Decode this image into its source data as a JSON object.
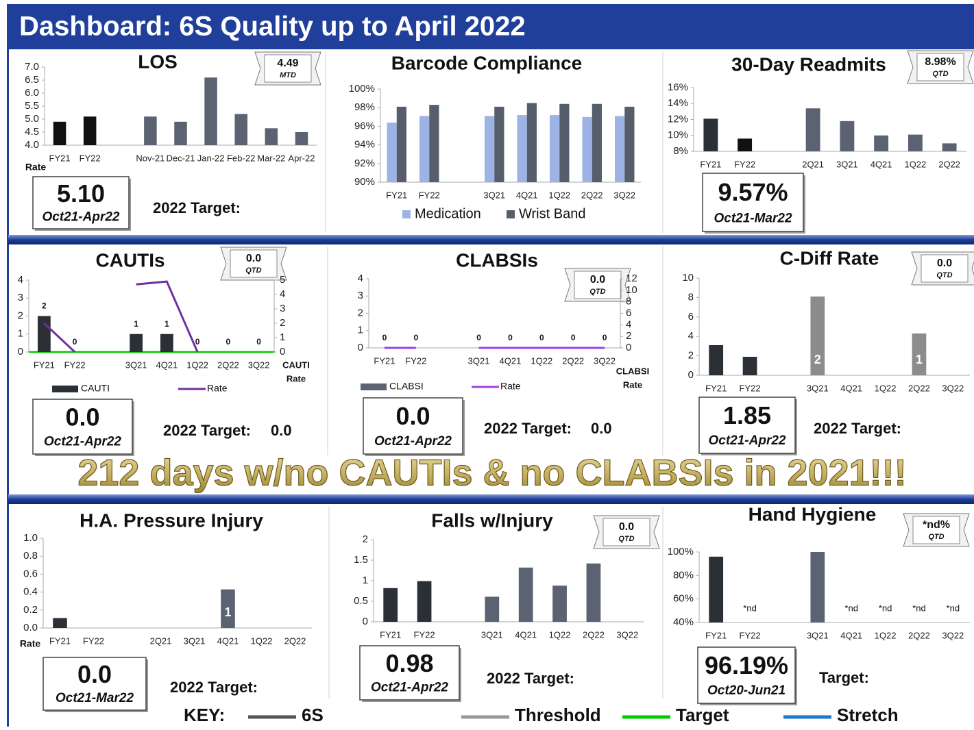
{
  "header": {
    "title": "Dashboard: 6S Quality up to April 2022"
  },
  "banner": "212 days w/no CAUTIs & no CLABSIs in 2021!!!",
  "panels": [
    {
      "title": "LOS",
      "badge": {
        "value": "4.49",
        "label": "MTD"
      },
      "chart": {
        "type": "bar",
        "categories": [
          "FY21",
          "FY22",
          null,
          "Nov-21",
          "Dec-21",
          "Jan-22",
          "Feb-22",
          "Mar-22",
          "Apr-22"
        ],
        "series": [
          {
            "name": "LOS",
            "values": [
              4.9,
              5.1,
              null,
              5.1,
              4.9,
              6.6,
              5.2,
              4.65,
              4.5
            ],
            "colors": [
              "#111111",
              "#111111",
              null,
              "#5b6373",
              "#5b6373",
              "#5b6373",
              "#5b6373",
              "#5b6373",
              "#5b6373"
            ]
          }
        ],
        "ylim": [
          4,
          7
        ],
        "yticks": [
          {
            "value": 4,
            "label": "4.0"
          },
          {
            "value": 4.5,
            "label": "4.5"
          },
          {
            "value": 5,
            "label": "5.0"
          },
          {
            "value": 5.5,
            "label": "5.5"
          },
          {
            "value": 6,
            "label": "6.0"
          },
          {
            "value": 6.5,
            "label": "6.5"
          },
          {
            "value": 7,
            "label": "7.0"
          }
        ],
        "axis_note": "Rate"
      },
      "summary": {
        "value": "5.10",
        "period": "Oct21-Apr22"
      },
      "target": {
        "label": "2022 Target:"
      }
    },
    {
      "title": "Barcode Compliance",
      "chart": {
        "type": "bar",
        "categories": [
          "FY21",
          "FY22",
          null,
          "3Q21",
          "4Q21",
          "1Q22",
          "2Q22",
          "3Q22"
        ],
        "series": [
          {
            "name": "Medication",
            "color": "#9db3e6",
            "values": [
              96.4,
              97.1,
              null,
              97.1,
              97.2,
              97.2,
              97.0,
              97.1
            ]
          },
          {
            "name": "Wrist Band",
            "color": "#565e6b",
            "values": [
              98.1,
              98.3,
              null,
              98.1,
              98.5,
              98.4,
              98.4,
              98.1
            ]
          }
        ],
        "ylim": [
          90,
          100
        ],
        "yticks": [
          {
            "value": 90,
            "label": "90%"
          },
          {
            "value": 92,
            "label": "92%"
          },
          {
            "value": 94,
            "label": "94%"
          },
          {
            "value": 96,
            "label": "96%"
          },
          {
            "value": 98,
            "label": "98%"
          },
          {
            "value": 100,
            "label": "100%"
          }
        ],
        "legend": true
      }
    },
    {
      "title": "30-Day Readmits",
      "badge": {
        "value": "8.98%",
        "label": "QTD"
      },
      "chart": {
        "type": "bar",
        "categories": [
          "FY21",
          "FY22",
          null,
          "2Q21",
          "3Q21",
          "4Q21",
          "1Q22",
          "2Q22"
        ],
        "series": [
          {
            "name": "Readmits",
            "values": [
              12.1,
              9.6,
              null,
              13.4,
              11.8,
              10.0,
              10.1,
              9.0
            ],
            "colors": [
              "#2b2f36",
              "#111111",
              null,
              "#5b6373",
              "#5b6373",
              "#5b6373",
              "#5b6373",
              "#5b6373"
            ]
          }
        ],
        "ylim": [
          8,
          16
        ],
        "yticks": [
          {
            "value": 8,
            "label": "8%"
          },
          {
            "value": 10,
            "label": "10%"
          },
          {
            "value": 12,
            "label": "12%"
          },
          {
            "value": 14,
            "label": "14%"
          },
          {
            "value": 16,
            "label": "16%"
          }
        ]
      },
      "summary": {
        "value": "9.57%",
        "period": "Oct21-Mar22"
      }
    },
    {
      "title": "CAUTIs",
      "badge": {
        "value": "0.0",
        "label": "QTD"
      },
      "chart": {
        "type": "bar",
        "categories": [
          "FY21",
          "FY22",
          null,
          "3Q21",
          "4Q21",
          "1Q22",
          "2Q22",
          "3Q22"
        ],
        "series": [
          {
            "name": "CAUTI",
            "color": "#2b2f36",
            "values": [
              2,
              0,
              null,
              1,
              1,
              0,
              0,
              0
            ],
            "labels": true
          },
          {
            "name": "Rate",
            "type": "line",
            "axis": "y2",
            "color": "#7030a0",
            "values": [
              2.0,
              0,
              null,
              4.7,
              4.9,
              0,
              null,
              null
            ]
          }
        ],
        "ylim": [
          0,
          4
        ],
        "yticks": [
          0,
          1,
          2,
          3,
          4
        ],
        "y2lim": [
          0,
          5
        ],
        "y2ticks": [
          0,
          1,
          2,
          3,
          4,
          5
        ],
        "y2_title": [
          "CAUTI",
          "Rate"
        ],
        "target_line": 0,
        "legend": true
      },
      "summary": {
        "value": "0.0",
        "period": "Oct21-Apr22"
      },
      "target": {
        "label": "2022 Target:",
        "value": "0.0"
      }
    },
    {
      "title": "CLABSIs",
      "badge": {
        "value": "0.0",
        "label": "QTD"
      },
      "chart": {
        "type": "bar",
        "categories": [
          "FY21",
          "FY22",
          null,
          "3Q21",
          "4Q21",
          "1Q22",
          "2Q22",
          "3Q22"
        ],
        "series": [
          {
            "name": "CLABSI",
            "color": "#5b6373",
            "values": [
              0,
              0,
              null,
              0,
              0,
              0,
              0,
              0
            ],
            "labels": true
          },
          {
            "name": "Rate",
            "type": "line",
            "axis": "y2",
            "color": "#a040e0",
            "values": [
              0,
              0,
              null,
              0,
              0,
              0,
              0,
              0
            ]
          }
        ],
        "ylim": [
          0,
          4
        ],
        "yticks": [
          0,
          1,
          2,
          3,
          4
        ],
        "y2lim": [
          0,
          12
        ],
        "y2ticks": [
          0,
          2,
          4,
          6,
          8,
          10,
          12
        ],
        "y2_title": [
          "CLABSI",
          "Rate"
        ],
        "legend": true
      },
      "summary": {
        "value": "0.0",
        "period": "Oct21-Apr22"
      },
      "target": {
        "label": "2022 Target:",
        "value": "0.0"
      }
    },
    {
      "title": "C-Diff Rate",
      "badge": {
        "value": "0.0",
        "label": "QTD"
      },
      "chart": {
        "type": "bar",
        "categories": [
          "FY21",
          "FY22",
          null,
          "3Q21",
          "4Q21",
          "1Q22",
          "2Q22",
          "3Q22"
        ],
        "series": [
          {
            "name": "C-Diff",
            "values": [
              3.1,
              1.9,
              null,
              8.1,
              null,
              null,
              4.3,
              null
            ],
            "colors": [
              "#2b2f36",
              "#2b2f36",
              null,
              "#8c8c8c",
              null,
              null,
              "#8c8c8c",
              null
            ]
          }
        ],
        "counts": [
          null,
          null,
          null,
          2,
          null,
          null,
          1,
          null
        ],
        "ylim": [
          0,
          10
        ],
        "yticks": [
          0,
          2,
          4,
          6,
          8,
          10
        ]
      },
      "summary": {
        "value": "1.85",
        "period": "Oct21-Apr22"
      },
      "target": {
        "label": "2022 Target:"
      }
    },
    {
      "title": "H.A. Pressure Injury",
      "chart": {
        "type": "bar",
        "categories": [
          "FY21",
          "FY22",
          null,
          "2Q21",
          "3Q21",
          "4Q21",
          "1Q22",
          "2Q22"
        ],
        "series": [
          {
            "name": "Pressure Injury",
            "values": [
              0.11,
              null,
              null,
              null,
              null,
              0.43,
              null,
              null
            ],
            "colors": [
              "#2b2f36",
              null,
              null,
              null,
              null,
              "#5b6373",
              null,
              null
            ]
          }
        ],
        "counts": [
          null,
          null,
          null,
          null,
          null,
          1,
          null,
          null
        ],
        "ylim": [
          0,
          1
        ],
        "yticks": [
          {
            "value": 0,
            "label": "0.0"
          },
          {
            "value": 0.2,
            "label": "0.2"
          },
          {
            "value": 0.4,
            "label": "0.4"
          },
          {
            "value": 0.6,
            "label": "0.6"
          },
          {
            "value": 0.8,
            "label": "0.8"
          },
          {
            "value": 1,
            "label": "1.0"
          }
        ],
        "axis_note": "Rate"
      },
      "summary": {
        "value": "0.0",
        "period": "Oct21-Mar22"
      },
      "target": {
        "label": "2022 Target:"
      }
    },
    {
      "title": "Falls w/Injury",
      "badge": {
        "value": "0.0",
        "label": "QTD"
      },
      "chart": {
        "type": "bar",
        "categories": [
          "FY21",
          "FY22",
          null,
          "3Q21",
          "4Q21",
          "1Q22",
          "2Q22",
          "3Q22"
        ],
        "series": [
          {
            "name": "Falls",
            "values": [
              0.82,
              0.99,
              null,
              0.61,
              1.32,
              0.88,
              1.42,
              null
            ],
            "colors": [
              "#2b2f36",
              "#2b2f36",
              null,
              "#5b6373",
              "#5b6373",
              "#5b6373",
              "#5b6373",
              null
            ]
          }
        ],
        "ylim": [
          0,
          2
        ],
        "yticks": [
          0,
          0.5,
          1,
          1.5,
          2
        ]
      },
      "summary": {
        "value": "0.98",
        "period": "Oct21-Apr22"
      },
      "target": {
        "label": "2022 Target:"
      }
    },
    {
      "title": "Hand Hygiene",
      "badge": {
        "value": "*nd%",
        "label": "QTD"
      },
      "chart": {
        "type": "bar",
        "categories": [
          "FY21",
          "FY22",
          null,
          "3Q21",
          "4Q21",
          "1Q22",
          "2Q22",
          "3Q22"
        ],
        "series": [
          {
            "name": "Hand Hygiene",
            "values": [
              96,
              null,
              null,
              100,
              null,
              null,
              null,
              null
            ],
            "colors": [
              "#2b2f36",
              null,
              null,
              "#5b6373",
              null,
              null,
              null,
              null
            ]
          }
        ],
        "notes": [
          null,
          "*nd",
          null,
          null,
          "*nd",
          "*nd",
          "*nd",
          "*nd"
        ],
        "ylim": [
          40,
          100
        ],
        "yticks": [
          {
            "value": 40,
            "label": "40%"
          },
          {
            "value": 60,
            "label": "60%"
          },
          {
            "value": 80,
            "label": "80%"
          },
          {
            "value": 100,
            "label": "100%"
          }
        ]
      },
      "summary": {
        "value": "96.19%",
        "period": "Oct20-Jun21"
      },
      "target": {
        "label": "Target:"
      }
    }
  ],
  "key": {
    "label": "KEY:",
    "items": [
      {
        "name": "6S",
        "color": "#555555"
      },
      {
        "name": "Threshold",
        "color": "#9a9a9a"
      },
      {
        "name": "Target",
        "color": "#00cc00"
      },
      {
        "name": "Stretch",
        "color": "#1e78c8"
      }
    ]
  }
}
